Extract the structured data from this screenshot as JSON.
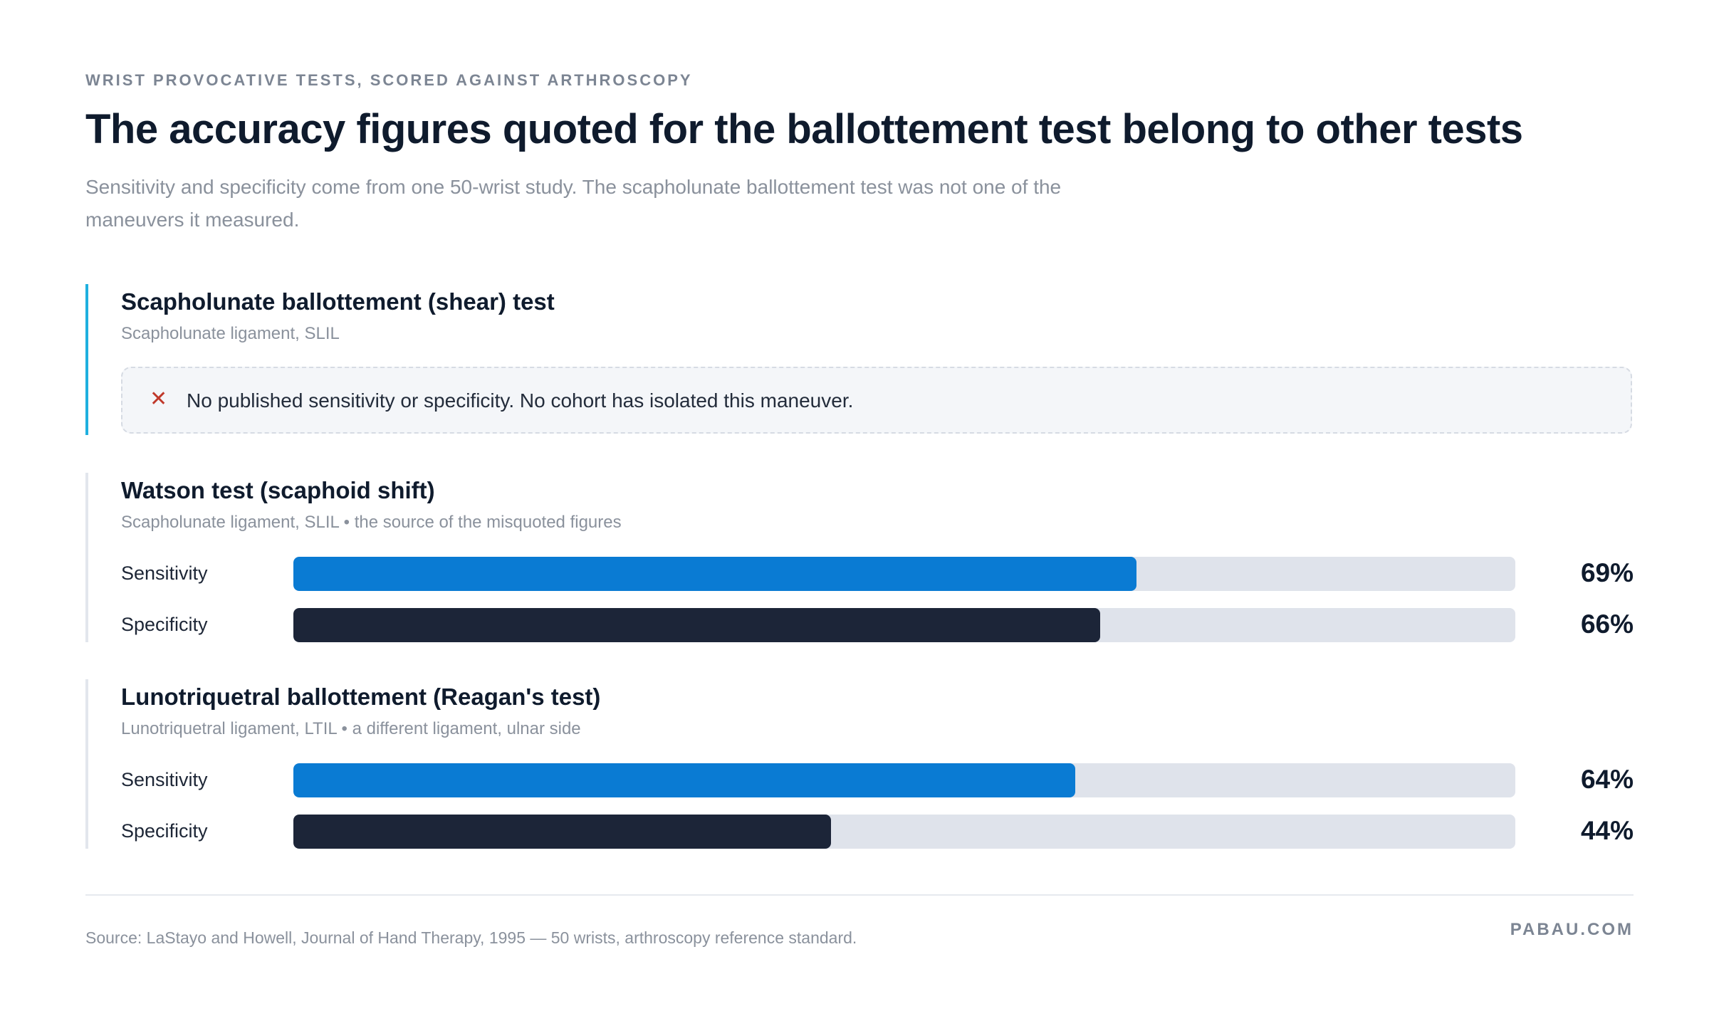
{
  "eyebrow": "WRIST PROVOCATIVE TESTS, SCORED AGAINST ARTHROSCOPY",
  "title": "The accuracy figures quoted for the ballottement test belong to other tests",
  "subtitle": "Sensitivity and specificity come from one 50-wrist study. The scapholunate ballottement test was not one of the maneuvers it measured.",
  "colors": {
    "sensitivity": "#0a7bd3",
    "specificity": "#1c2538",
    "track": "#dfe3eb",
    "accent_rail": "#1fb0df",
    "no_data_icon": "#c0392b"
  },
  "chart_data": {
    "type": "bar",
    "orientation": "horizontal",
    "xlim": [
      0,
      100
    ],
    "unit": "%",
    "groups": [
      {
        "name": "Scapholunate ballottement (shear) test",
        "meta": "Scapholunate ligament, SLIL",
        "no_data": true,
        "no_data_icon": "close-icon",
        "note": "No published sensitivity or specificity. No cohort has isolated this maneuver.",
        "bars": []
      },
      {
        "name": "Watson test (scaphoid shift)",
        "meta": "Scapholunate ligament, SLIL • the source of the misquoted figures",
        "no_data": false,
        "bars": [
          {
            "label": "Sensitivity",
            "value": 69,
            "display": "69%",
            "kind": "sens"
          },
          {
            "label": "Specificity",
            "value": 66,
            "display": "66%",
            "kind": "spec"
          }
        ]
      },
      {
        "name": "Lunotriquetral ballottement (Reagan's test)",
        "meta": "Lunotriquetral ligament, LTIL • a different ligament, ulnar side",
        "no_data": false,
        "bars": [
          {
            "label": "Sensitivity",
            "value": 64,
            "display": "64%",
            "kind": "sens"
          },
          {
            "label": "Specificity",
            "value": 44,
            "display": "44%",
            "kind": "spec"
          }
        ]
      }
    ]
  },
  "footer": {
    "source": "Source: LaStayo and Howell, Journal of Hand Therapy, 1995 — 50 wrists, arthroscopy reference standard.",
    "brand": "PABAU.COM"
  }
}
